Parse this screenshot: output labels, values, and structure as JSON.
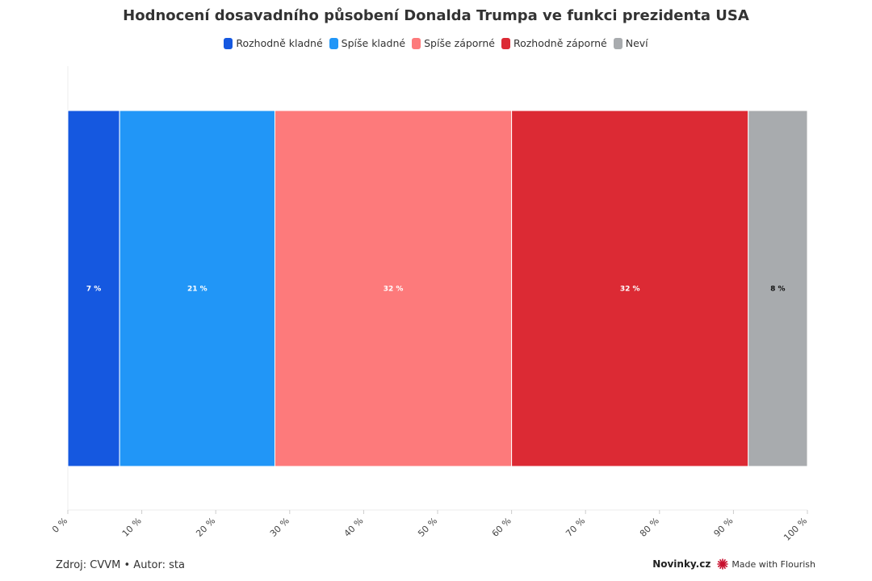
{
  "chart_data": {
    "type": "bar",
    "orientation": "horizontal-stacked",
    "title": "Hodnocení dosavadního působení Donalda Trumpa ve funkci prezidenta USA",
    "categories": [
      ""
    ],
    "series": [
      {
        "name": "Rozhodně kladné",
        "values": [
          7
        ],
        "label": "7 %",
        "color": "#1558e0",
        "label_color": "#ffffff"
      },
      {
        "name": "Spíše kladné",
        "values": [
          21
        ],
        "label": "21 %",
        "color": "#2196f7",
        "label_color": "#ffffff"
      },
      {
        "name": "Spíše záporné",
        "values": [
          32
        ],
        "label": "32 %",
        "color": "#fd7a7b",
        "label_color": "#ffffff"
      },
      {
        "name": "Rozhodně záporné",
        "values": [
          32
        ],
        "label": "32 %",
        "color": "#dc2a34",
        "label_color": "#ffffff"
      },
      {
        "name": "Neví",
        "values": [
          8
        ],
        "label": "8 %",
        "color": "#a8abae",
        "label_color": "#111111"
      }
    ],
    "xlim": [
      0,
      100
    ],
    "xticks": [
      "0 %",
      "10 %",
      "20 %",
      "30 %",
      "40 %",
      "50 %",
      "60 %",
      "70 %",
      "80 %",
      "90 %",
      "100 %"
    ],
    "xlabel": "",
    "ylabel": "",
    "legend": "top-center",
    "grid": true
  },
  "footer": {
    "source": "Zdroj: CVVM • Autor: sta",
    "brand": "Novinky.cz",
    "made_with": "Made with Flourish"
  },
  "colors": {
    "flourish_icon": "#c8102e"
  }
}
